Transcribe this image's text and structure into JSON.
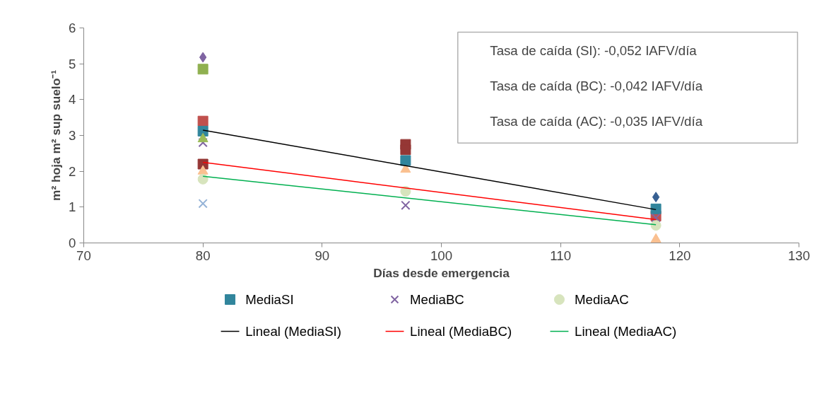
{
  "chart_data": {
    "type": "scatter",
    "xlabel": "Días desde emergencia",
    "ylabel": "m² hoja m² sup suelo⁻¹",
    "xlim": [
      70,
      130
    ],
    "xticks": [
      70,
      80,
      90,
      100,
      110,
      120,
      130
    ],
    "ylim": [
      0,
      6
    ],
    "yticks": [
      0,
      1,
      2,
      3,
      4,
      5,
      6
    ],
    "grid": false,
    "legend": "bottom",
    "annotations": [
      "Tasa de caída (SI): -0,052 IAFV/día",
      "Tasa de caída (BC): -0,042 IAFV/día",
      "Tasa de caída (AC): -0,035 IAFV/día"
    ],
    "series": [
      {
        "color": "#7f64a2",
        "marker": "diamond",
        "x": [
          80
        ],
        "values": [
          5.18
        ]
      },
      {
        "color": "#8fb050",
        "marker": "square",
        "x": [
          80
        ],
        "values": [
          4.85
        ]
      },
      {
        "color": "#c0504d",
        "marker": "square",
        "x": [
          80,
          118
        ],
        "values": [
          3.4,
          0.75
        ]
      },
      {
        "color": "#953735",
        "marker": "square",
        "x": [
          80,
          97,
          97
        ],
        "values": [
          2.2,
          2.75,
          2.6
        ]
      },
      {
        "color": "#fac090",
        "marker": "triangle",
        "x": [
          80,
          97,
          118
        ],
        "values": [
          2.0,
          2.05,
          0.1
        ]
      },
      {
        "color": "#95b3d7",
        "marker": "cross",
        "x": [
          80
        ],
        "values": [
          1.1
        ]
      },
      {
        "color": "#376092",
        "marker": "diamond",
        "x": [
          118
        ],
        "values": [
          1.28
        ]
      },
      {
        "name": "MediaSI",
        "color": "#31859c",
        "marker": "square",
        "x": [
          80,
          97,
          118
        ],
        "values": [
          3.12,
          2.3,
          0.95
        ]
      },
      {
        "name": "MediaBC",
        "color": "#8064a2",
        "marker": "cross",
        "x": [
          80,
          97,
          118
        ],
        "values": [
          2.8,
          1.05,
          0.7
        ]
      },
      {
        "name": "MediaAC",
        "color": "#d7e4bd",
        "marker": "circle",
        "x": [
          80,
          97,
          118
        ],
        "values": [
          1.78,
          1.44,
          0.49
        ]
      },
      {
        "color": "#9bbb59",
        "marker": "triangle",
        "x": [
          80
        ],
        "values": [
          2.9
        ]
      },
      {
        "name": "Lineal (MediaSI)",
        "type": "line",
        "color": "#000000",
        "marker": "none",
        "x": [
          80,
          118
        ],
        "values": [
          3.15,
          0.93
        ]
      },
      {
        "name": "Lineal (MediaBC)",
        "type": "line",
        "color": "#ff0000",
        "marker": "none",
        "x": [
          80,
          118
        ],
        "values": [
          2.25,
          0.65
        ]
      },
      {
        "name": "Lineal (MediaAC)",
        "type": "line",
        "color": "#00b050",
        "marker": "none",
        "x": [
          80,
          118
        ],
        "values": [
          1.86,
          0.51
        ]
      }
    ]
  }
}
